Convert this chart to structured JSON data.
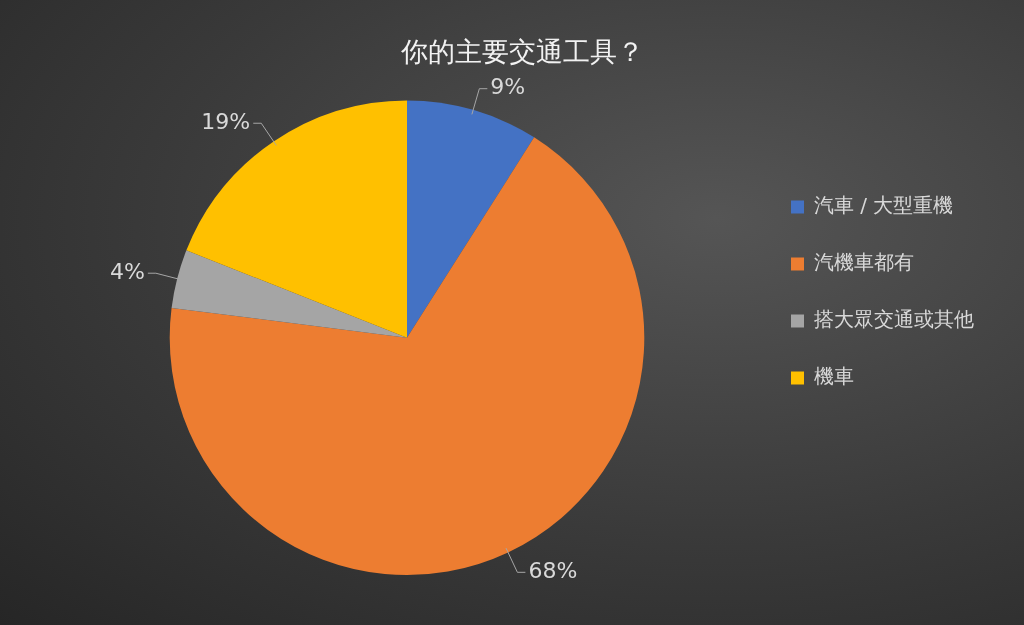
{
  "chart_data": {
    "type": "pie",
    "title": "你的主要交通工具？",
    "categories": [
      "汽車 / 大型重機",
      "汽機車都有",
      "搭大眾交通或其他",
      "機車"
    ],
    "values": [
      9,
      68,
      4,
      19
    ],
    "colors": [
      "#4472c4",
      "#ed7d31",
      "#a5a5a5",
      "#ffc000"
    ],
    "value_labels": [
      "9%",
      "68%",
      "4%",
      "19%"
    ],
    "legend": "right"
  }
}
